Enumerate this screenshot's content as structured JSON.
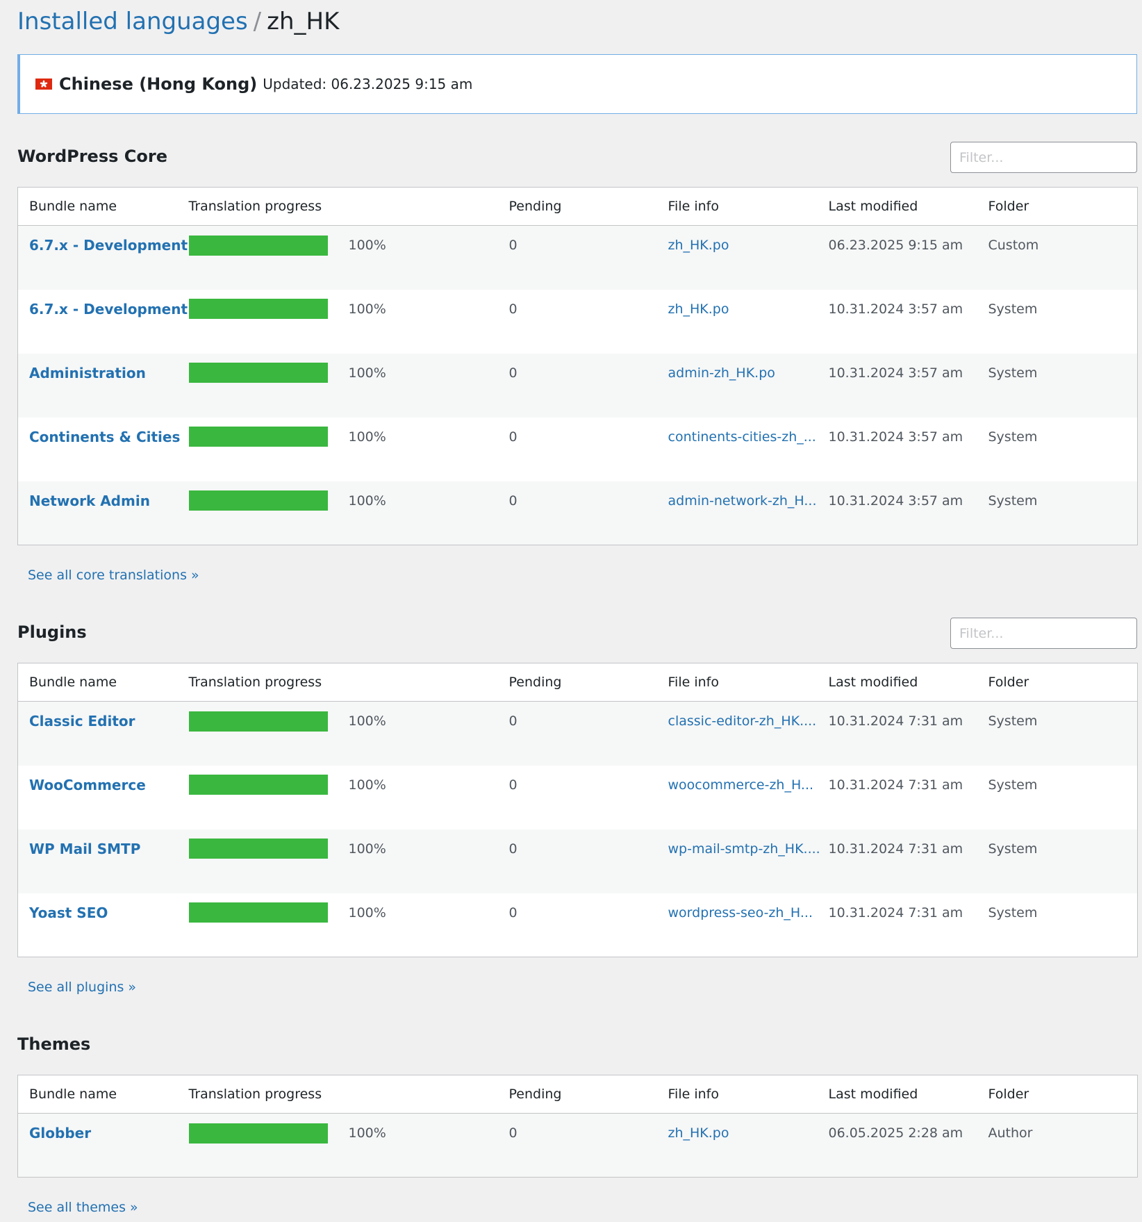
{
  "header": {
    "title": "Installed languages",
    "separator": "/",
    "locale": "zh_HK"
  },
  "banner": {
    "language": "Chinese (Hong Kong)",
    "updated": "Updated: 06.23.2025 9:15 am"
  },
  "sections": [
    {
      "title": "WordPress Core",
      "filter_placeholder": "Filter...",
      "columns": [
        "Bundle name",
        "Translation progress",
        "Pending",
        "File info",
        "Last modified",
        "Folder"
      ],
      "rows": [
        {
          "name": "6.7.x - Development",
          "progress": {
            "value": 100,
            "label": "100%"
          },
          "pending": 0,
          "file": "zh_HK.po",
          "modified": "06.23.2025 9:15 am",
          "folder": "Custom"
        },
        {
          "name": "6.7.x - Development",
          "progress": {
            "value": 100,
            "label": "100%"
          },
          "pending": 0,
          "file": "zh_HK.po",
          "modified": "10.31.2024 3:57 am",
          "folder": "System"
        },
        {
          "name": "Administration",
          "progress": {
            "value": 100,
            "label": "100%"
          },
          "pending": 0,
          "file": "admin-zh_HK.po",
          "modified": "10.31.2024 3:57 am",
          "folder": "System"
        },
        {
          "name": "Continents & Cities",
          "progress": {
            "value": 100,
            "label": "100%"
          },
          "pending": 0,
          "file": "continents-cities-zh_...",
          "modified": "10.31.2024 3:57 am",
          "folder": "System"
        },
        {
          "name": "Network Admin",
          "progress": {
            "value": 100,
            "label": "100%"
          },
          "pending": 0,
          "file": "admin-network-zh_H...",
          "modified": "10.31.2024 3:57 am",
          "folder": "System"
        }
      ],
      "see_all": "See all core translations »"
    },
    {
      "title": "Plugins",
      "filter_placeholder": "Filter...",
      "columns": [
        "Bundle name",
        "Translation progress",
        "Pending",
        "File info",
        "Last modified",
        "Folder"
      ],
      "rows": [
        {
          "name": "Classic Editor",
          "progress": {
            "value": 100,
            "label": "100%"
          },
          "pending": 0,
          "file": "classic-editor-zh_HK....",
          "modified": "10.31.2024 7:31 am",
          "folder": "System"
        },
        {
          "name": "WooCommerce",
          "progress": {
            "value": 100,
            "label": "100%"
          },
          "pending": 0,
          "file": "woocommerce-zh_H...",
          "modified": "10.31.2024 7:31 am",
          "folder": "System"
        },
        {
          "name": "WP Mail SMTP",
          "progress": {
            "value": 100,
            "label": "100%"
          },
          "pending": 0,
          "file": "wp-mail-smtp-zh_HK....",
          "modified": "10.31.2024 7:31 am",
          "folder": "System"
        },
        {
          "name": "Yoast SEO",
          "progress": {
            "value": 100,
            "label": "100%"
          },
          "pending": 0,
          "file": "wordpress-seo-zh_H...",
          "modified": "10.31.2024 7:31 am",
          "folder": "System"
        }
      ],
      "see_all": "See all plugins »"
    },
    {
      "title": "Themes",
      "columns": [
        "Bundle name",
        "Translation progress",
        "Pending",
        "File info",
        "Last modified",
        "Folder"
      ],
      "rows": [
        {
          "name": "Globber",
          "progress": {
            "value": 100,
            "label": "100%"
          },
          "pending": 0,
          "file": "zh_HK.po",
          "modified": "06.05.2025 2:28 am",
          "folder": "Author"
        }
      ],
      "see_all": "See all themes »"
    }
  ]
}
